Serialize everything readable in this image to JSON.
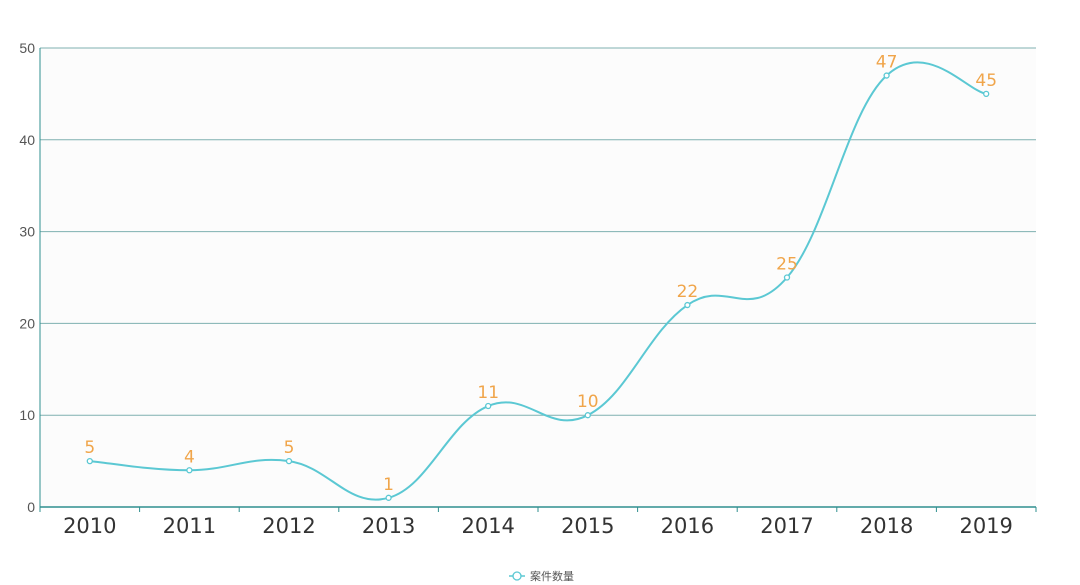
{
  "chart_data": {
    "type": "line",
    "smooth": true,
    "categories": [
      "2010",
      "2011",
      "2012",
      "2013",
      "2014",
      "2015",
      "2016",
      "2017",
      "2018",
      "2019"
    ],
    "series": [
      {
        "name": "案件数量",
        "values": [
          5,
          4,
          5,
          1,
          11,
          10,
          22,
          25,
          47,
          45
        ]
      }
    ],
    "yticks": [
      0,
      10,
      20,
      30,
      40,
      50
    ],
    "ylim": [
      0,
      50
    ],
    "grid": true,
    "legend_position": "bottom-center",
    "show_data_labels": true,
    "colors": {
      "line": "#5bc8d3",
      "label": "#f0a54a",
      "grid": "#7fb0b0",
      "axis": "#2f8f8f",
      "plot_bg": "#fcfcfc"
    }
  }
}
